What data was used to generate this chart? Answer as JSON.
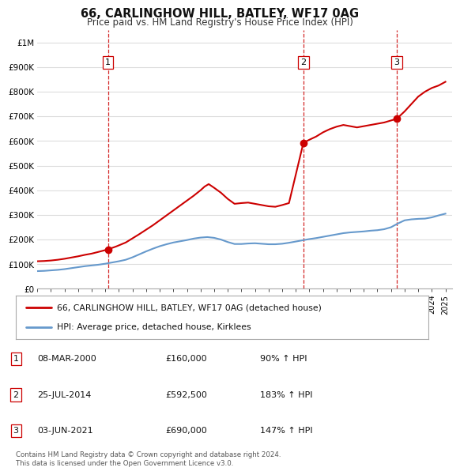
{
  "title": "66, CARLINGHOW HILL, BATLEY, WF17 0AG",
  "subtitle": "Price paid vs. HM Land Registry's House Price Index (HPI)",
  "hpi_line_color": "#6699cc",
  "price_line_color": "#cc0000",
  "sale_marker_color": "#cc0000",
  "dashed_line_color": "#cc0000",
  "background_color": "#ffffff",
  "grid_color": "#dddddd",
  "yticks": [
    0,
    100000,
    200000,
    300000,
    400000,
    500000,
    600000,
    700000,
    800000,
    900000,
    1000000
  ],
  "ytick_labels": [
    "£0",
    "£100K",
    "£200K",
    "£300K",
    "£400K",
    "£500K",
    "£600K",
    "£700K",
    "£800K",
    "£900K",
    "£1M"
  ],
  "sale_dates": [
    2000.19,
    2014.56,
    2021.42
  ],
  "sale_prices": [
    160000,
    592500,
    690000
  ],
  "sale_labels": [
    "1",
    "2",
    "3"
  ],
  "legend_line1": "66, CARLINGHOW HILL, BATLEY, WF17 0AG (detached house)",
  "legend_line2": "HPI: Average price, detached house, Kirklees",
  "table_data": [
    [
      "1",
      "08-MAR-2000",
      "£160,000",
      "90% ↑ HPI"
    ],
    [
      "2",
      "25-JUL-2014",
      "£592,500",
      "183% ↑ HPI"
    ],
    [
      "3",
      "03-JUN-2021",
      "£690,000",
      "147% ↑ HPI"
    ]
  ],
  "footer": "Contains HM Land Registry data © Crown copyright and database right 2024.\nThis data is licensed under the Open Government Licence v3.0.",
  "xmin": 1995,
  "xmax": 2025.5,
  "ymin": 0,
  "ymax": 1050000,
  "hpi_years": [
    1995,
    1995.5,
    1996,
    1996.5,
    1997,
    1997.5,
    1998,
    1998.5,
    1999,
    1999.5,
    2000,
    2000.5,
    2001,
    2001.5,
    2002,
    2002.5,
    2003,
    2003.5,
    2004,
    2004.5,
    2005,
    2005.5,
    2006,
    2006.5,
    2007,
    2007.5,
    2008,
    2008.5,
    2009,
    2009.5,
    2010,
    2010.5,
    2011,
    2011.5,
    2012,
    2012.5,
    2013,
    2013.5,
    2014,
    2014.5,
    2015,
    2015.5,
    2016,
    2016.5,
    2017,
    2017.5,
    2018,
    2018.5,
    2019,
    2019.5,
    2020,
    2020.5,
    2021,
    2021.5,
    2022,
    2022.5,
    2023,
    2023.5,
    2024,
    2024.5,
    2025
  ],
  "hpi_values": [
    72000,
    73000,
    75000,
    77000,
    80000,
    84000,
    88000,
    92000,
    95000,
    98000,
    102000,
    107000,
    112000,
    118000,
    128000,
    140000,
    152000,
    163000,
    173000,
    181000,
    188000,
    193000,
    198000,
    204000,
    208000,
    210000,
    207000,
    200000,
    190000,
    182000,
    182000,
    184000,
    185000,
    183000,
    181000,
    181000,
    183000,
    187000,
    192000,
    197000,
    202000,
    206000,
    211000,
    216000,
    221000,
    226000,
    229000,
    231000,
    233000,
    236000,
    238000,
    242000,
    250000,
    265000,
    278000,
    282000,
    284000,
    285000,
    290000,
    298000,
    305000
  ],
  "prop_years": [
    1995,
    1995.5,
    1996,
    1996.5,
    1997,
    1997.5,
    1998,
    1998.5,
    1999,
    1999.5,
    2000.19,
    2000.8,
    2001.5,
    2002,
    2002.5,
    2003,
    2003.5,
    2004,
    2004.5,
    2005,
    2005.5,
    2006,
    2006.5,
    2007,
    2007.3,
    2007.6,
    2008,
    2008.5,
    2009,
    2009.5,
    2010,
    2010.5,
    2011,
    2011.5,
    2012,
    2012.5,
    2013,
    2013.5,
    2014.56,
    2015,
    2015.5,
    2016,
    2016.5,
    2017,
    2017.5,
    2018,
    2018.5,
    2019,
    2019.5,
    2020,
    2020.5,
    2021.42,
    2022,
    2022.5,
    2023,
    2023.5,
    2024,
    2024.5,
    2025
  ],
  "prop_values": [
    112000,
    113000,
    115000,
    118000,
    122000,
    127000,
    132000,
    138000,
    143000,
    150000,
    160000,
    172000,
    188000,
    205000,
    222000,
    240000,
    258000,
    278000,
    298000,
    318000,
    338000,
    358000,
    378000,
    400000,
    415000,
    425000,
    410000,
    390000,
    365000,
    345000,
    348000,
    350000,
    345000,
    340000,
    335000,
    333000,
    340000,
    348000,
    592500,
    605000,
    618000,
    635000,
    648000,
    658000,
    665000,
    660000,
    655000,
    660000,
    665000,
    670000,
    675000,
    690000,
    720000,
    750000,
    780000,
    800000,
    815000,
    825000,
    840000
  ]
}
